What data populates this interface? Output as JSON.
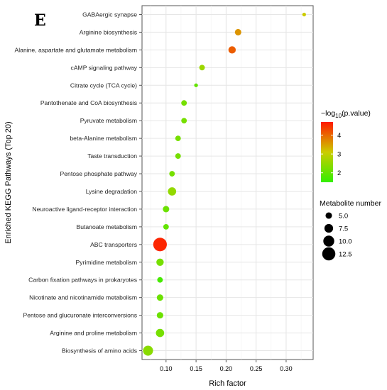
{
  "panel_letter": "E",
  "chart_data": {
    "type": "scatter",
    "xlabel": "Rich factor",
    "ylabel": "Enriched KEGG Pathways (Top 20)",
    "xlim": [
      0.06,
      0.345
    ],
    "x_ticks": [
      0.1,
      0.15,
      0.2,
      0.25,
      0.3
    ],
    "x_tick_labels": [
      "0.10",
      "0.15",
      "0.20",
      "0.25",
      "0.30"
    ],
    "grid": true,
    "legend_position": "right",
    "color_legend": {
      "title_prefix": "−log",
      "title_sub": "10",
      "title_suffix": "(p.value)",
      "ticks": [
        2,
        3,
        4
      ],
      "tick_labels": [
        "2",
        "3",
        "4"
      ],
      "range": [
        1.5,
        4.7
      ],
      "low_color": "#33ee00",
      "mid_color": "#cccc00",
      "high_color": "#ff1a00"
    },
    "size_legend": {
      "title": "Metabolite number",
      "values": [
        5.0,
        7.5,
        10.0,
        12.5
      ],
      "labels": [
        "5.0",
        "7.5",
        "10.0",
        "12.5"
      ]
    },
    "categories": [
      "GABAergic synapse",
      "Arginine biosynthesis",
      "Alanine, aspartate and glutamate metabolism",
      "cAMP signaling pathway",
      "Citrate cycle (TCA cycle)",
      "Pantothenate and CoA biosynthesis",
      "Pyruvate metabolism",
      "beta-Alanine metabolism",
      "Taste transduction",
      "Pentose phosphate pathway",
      "Lysine degradation",
      "Neuroactive ligand-receptor interaction",
      "Butanoate metabolism",
      "ABC transporters",
      "Pyrimidine metabolism",
      "Carbon fixation pathways in prokaryotes",
      "Nicotinate and nicotinamide metabolism",
      "Pentose and glucuronate interconversions",
      "Arginine and proline metabolism",
      "Biosynthesis of amino acids"
    ],
    "points": [
      {
        "pathway": "GABAergic synapse",
        "rich_factor": 0.33,
        "neg_log10_p": 3.1,
        "metabolites": 2
      },
      {
        "pathway": "Arginine biosynthesis",
        "rich_factor": 0.22,
        "neg_log10_p": 3.6,
        "metabolites": 5
      },
      {
        "pathway": "Alanine, aspartate and glutamate metabolism",
        "rich_factor": 0.21,
        "neg_log10_p": 4.1,
        "metabolites": 6
      },
      {
        "pathway": "cAMP signaling pathway",
        "rich_factor": 0.16,
        "neg_log10_p": 2.6,
        "metabolites": 4
      },
      {
        "pathway": "Citrate cycle (TCA cycle)",
        "rich_factor": 0.15,
        "neg_log10_p": 2.0,
        "metabolites": 2
      },
      {
        "pathway": "Pantothenate and CoA biosynthesis",
        "rich_factor": 0.13,
        "neg_log10_p": 2.2,
        "metabolites": 4
      },
      {
        "pathway": "Pyruvate metabolism",
        "rich_factor": 0.13,
        "neg_log10_p": 2.2,
        "metabolites": 4
      },
      {
        "pathway": "beta-Alanine metabolism",
        "rich_factor": 0.12,
        "neg_log10_p": 2.2,
        "metabolites": 4
      },
      {
        "pathway": "Taste transduction",
        "rich_factor": 0.12,
        "neg_log10_p": 2.2,
        "metabolites": 4
      },
      {
        "pathway": "Pentose phosphate pathway",
        "rich_factor": 0.11,
        "neg_log10_p": 2.2,
        "metabolites": 4
      },
      {
        "pathway": "Lysine degradation",
        "rich_factor": 0.11,
        "neg_log10_p": 2.5,
        "metabolites": 7
      },
      {
        "pathway": "Neuroactive ligand-receptor interaction",
        "rich_factor": 0.1,
        "neg_log10_p": 2.1,
        "metabolites": 5
      },
      {
        "pathway": "Butanoate metabolism",
        "rich_factor": 0.1,
        "neg_log10_p": 2.0,
        "metabolites": 4
      },
      {
        "pathway": "ABC transporters",
        "rich_factor": 0.09,
        "neg_log10_p": 4.6,
        "metabolites": 13
      },
      {
        "pathway": "Pyrimidine metabolism",
        "rich_factor": 0.09,
        "neg_log10_p": 2.2,
        "metabolites": 6
      },
      {
        "pathway": "Carbon fixation pathways in prokaryotes",
        "rich_factor": 0.09,
        "neg_log10_p": 1.7,
        "metabolites": 4
      },
      {
        "pathway": "Nicotinate and nicotinamide metabolism",
        "rich_factor": 0.09,
        "neg_log10_p": 2.1,
        "metabolites": 5
      },
      {
        "pathway": "Pentose and glucuronate interconversions",
        "rich_factor": 0.09,
        "neg_log10_p": 2.1,
        "metabolites": 5
      },
      {
        "pathway": "Arginine and proline metabolism",
        "rich_factor": 0.09,
        "neg_log10_p": 2.2,
        "metabolites": 7
      },
      {
        "pathway": "Biosynthesis of amino acids",
        "rich_factor": 0.07,
        "neg_log10_p": 2.4,
        "metabolites": 9
      }
    ]
  }
}
